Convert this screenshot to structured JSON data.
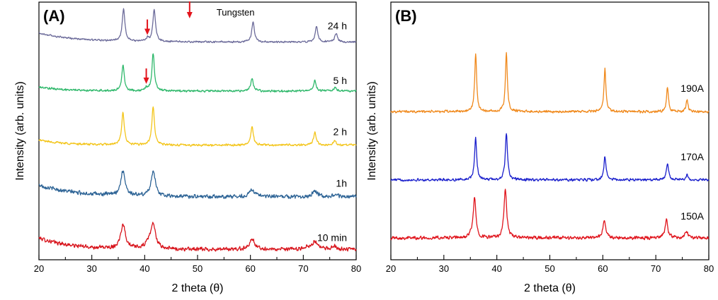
{
  "chart_data": [
    {
      "type": "line",
      "panel_label": "(A)",
      "xlabel": "2 theta (θ)",
      "ylabel": "Intensity (arb. units)",
      "xlim": [
        20,
        80
      ],
      "xticks": [
        20,
        30,
        40,
        50,
        60,
        70,
        80
      ],
      "x_minor_step": 5,
      "y_ticks_shown": false,
      "annotation": {
        "text": "Tungsten",
        "marker_x": 48.5,
        "marker_color": "#e3141c"
      },
      "series": [
        {
          "name": "10 min",
          "color": "#d8141c",
          "baseline": 0.04,
          "start_rise": 0.045,
          "decay": 6,
          "noise": 0.009,
          "peaks": [
            {
              "x": 35.9,
              "h": 0.095,
              "w": 0.55
            },
            {
              "x": 41.6,
              "h": 0.095,
              "w": 0.55
            },
            {
              "x": 40.7,
              "h": 0.02,
              "w": 0.6
            },
            {
              "x": 60.3,
              "h": 0.04,
              "w": 0.6
            },
            {
              "x": 72.2,
              "h": 0.03,
              "w": 0.6
            },
            {
              "x": 70.7,
              "h": 0.01,
              "w": 0.6
            },
            {
              "x": 75.9,
              "h": 0.012,
              "w": 0.6
            }
          ]
        },
        {
          "name": "1h",
          "color": "#2e6496",
          "baseline": 0.245,
          "start_rise": 0.045,
          "decay": 7,
          "noise": 0.009,
          "peaks": [
            {
              "x": 35.9,
              "h": 0.095,
              "w": 0.5
            },
            {
              "x": 41.6,
              "h": 0.095,
              "w": 0.5
            },
            {
              "x": 60.3,
              "h": 0.03,
              "w": 0.5
            },
            {
              "x": 72.2,
              "h": 0.025,
              "w": 0.5
            },
            {
              "x": 76.0,
              "h": 0.008,
              "w": 0.5
            }
          ]
        },
        {
          "name": "2 h",
          "color": "#f3c51a",
          "baseline": 0.445,
          "start_rise": 0.02,
          "decay": 5,
          "noise": 0.005,
          "peaks": [
            {
              "x": 35.9,
              "h": 0.125,
              "w": 0.3
            },
            {
              "x": 41.6,
              "h": 0.145,
              "w": 0.3
            },
            {
              "x": 60.3,
              "h": 0.07,
              "w": 0.3
            },
            {
              "x": 72.2,
              "h": 0.05,
              "w": 0.3
            },
            {
              "x": 75.9,
              "h": 0.017,
              "w": 0.3
            }
          ]
        },
        {
          "name": "5 h",
          "color": "#2fb86b",
          "baseline": 0.655,
          "start_rise": 0.015,
          "decay": 5,
          "noise": 0.005,
          "peaks": [
            {
              "x": 35.9,
              "h": 0.1,
              "w": 0.28
            },
            {
              "x": 41.6,
              "h": 0.145,
              "w": 0.28
            },
            {
              "x": 40.3,
              "h": 0.012,
              "w": 0.28
            },
            {
              "x": 60.3,
              "h": 0.05,
              "w": 0.28
            },
            {
              "x": 72.2,
              "h": 0.04,
              "w": 0.28
            },
            {
              "x": 76.0,
              "h": 0.014,
              "w": 0.28
            }
          ]
        },
        {
          "name": "24 h",
          "color": "#6c6b9a",
          "baseline": 0.845,
          "start_rise": 0.035,
          "decay": 7,
          "noise": 0.004,
          "peaks": [
            {
              "x": 36.0,
              "h": 0.125,
              "w": 0.3
            },
            {
              "x": 41.8,
              "h": 0.125,
              "w": 0.3
            },
            {
              "x": 40.5,
              "h": 0.012,
              "w": 0.3
            },
            {
              "x": 60.5,
              "h": 0.077,
              "w": 0.3
            },
            {
              "x": 72.5,
              "h": 0.061,
              "w": 0.3
            },
            {
              "x": 76.2,
              "h": 0.033,
              "w": 0.3
            }
          ]
        }
      ],
      "arrows": [
        {
          "series": "5 h",
          "x": 40.3
        },
        {
          "series": "24 h",
          "x": 40.5
        }
      ]
    },
    {
      "type": "line",
      "panel_label": "(B)",
      "xlabel": "2 theta (θ)",
      "ylabel": "Intensity (arb. units)",
      "xlim": [
        20,
        80
      ],
      "xticks": [
        20,
        30,
        40,
        50,
        60,
        70,
        80
      ],
      "x_minor_step": 5,
      "y_ticks_shown": false,
      "series": [
        {
          "name": "150A",
          "color": "#e0141c",
          "baseline": 0.085,
          "start_rise": 0.0,
          "decay": 6,
          "noise": 0.008,
          "peaks": [
            {
              "x": 35.8,
              "h": 0.155,
              "w": 0.3
            },
            {
              "x": 35.1,
              "h": 0.01,
              "w": 0.3
            },
            {
              "x": 41.6,
              "h": 0.19,
              "w": 0.3
            },
            {
              "x": 60.3,
              "h": 0.07,
              "w": 0.3
            },
            {
              "x": 72.0,
              "h": 0.07,
              "w": 0.3
            },
            {
              "x": 75.8,
              "h": 0.025,
              "w": 0.3
            }
          ]
        },
        {
          "name": "170A",
          "color": "#1a1fcc",
          "baseline": 0.31,
          "start_rise": 0.0,
          "decay": 6,
          "noise": 0.006,
          "peaks": [
            {
              "x": 36.0,
              "h": 0.16,
              "w": 0.25
            },
            {
              "x": 41.8,
              "h": 0.18,
              "w": 0.25
            },
            {
              "x": 60.4,
              "h": 0.09,
              "w": 0.25
            },
            {
              "x": 72.2,
              "h": 0.065,
              "w": 0.25
            },
            {
              "x": 75.9,
              "h": 0.02,
              "w": 0.25
            }
          ]
        },
        {
          "name": "190A",
          "color": "#f0891c",
          "baseline": 0.575,
          "start_rise": 0.0,
          "decay": 6,
          "noise": 0.006,
          "peaks": [
            {
              "x": 36.0,
              "h": 0.225,
              "w": 0.22
            },
            {
              "x": 41.8,
              "h": 0.225,
              "w": 0.22
            },
            {
              "x": 60.4,
              "h": 0.165,
              "w": 0.22
            },
            {
              "x": 72.2,
              "h": 0.095,
              "w": 0.22
            },
            {
              "x": 75.9,
              "h": 0.045,
              "w": 0.22
            }
          ]
        }
      ]
    }
  ]
}
